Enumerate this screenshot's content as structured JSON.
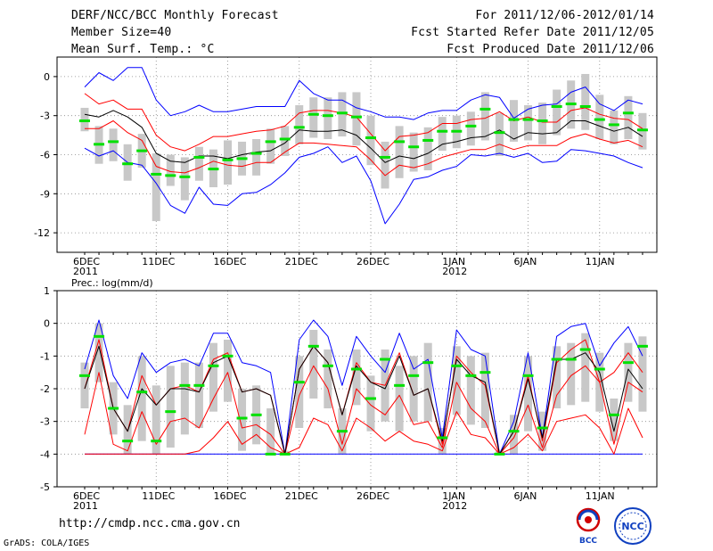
{
  "header": {
    "title": "DERF/NCC/BCC Monthly Forecast",
    "member_size": "Member Size=40",
    "variable": "Mean Surf. Temp.: °C",
    "period": "For 2011/12/06-2012/01/14",
    "started": "Fcst Started Refer Date 2011/12/05",
    "produced": "Fcst Produced Date 2011/12/06"
  },
  "footer": {
    "url": "http://cmdp.ncc.cma.gov.cn",
    "credit": "GrADS: COLA/IGES",
    "logo_left": "BCC",
    "logo_right": "NCC"
  },
  "colors": {
    "envelope": "#0000ff",
    "spread": "#ff0000",
    "mean": "#000000",
    "box": "#c8c8c8",
    "median": "#00e000",
    "grid": "#888888"
  },
  "chart_data": [
    {
      "type": "box-ensemble",
      "title": "Mean Surf. Temp.: °C",
      "ylim": [
        -13.5,
        1.5
      ],
      "yticks": [
        0,
        -3,
        -6,
        -9,
        -12
      ],
      "x_tick_labels": [
        {
          "day": 0,
          "label": "6DEC",
          "sub": "2011"
        },
        {
          "day": 5,
          "label": "11DEC",
          "sub": ""
        },
        {
          "day": 10,
          "label": "16DEC",
          "sub": ""
        },
        {
          "day": 15,
          "label": "21DEC",
          "sub": ""
        },
        {
          "day": 20,
          "label": "26DEC",
          "sub": ""
        },
        {
          "day": 26,
          "label": "1JAN",
          "sub": "2012"
        },
        {
          "day": 31,
          "label": "6JAN",
          "sub": ""
        },
        {
          "day": 36,
          "label": "11JAN",
          "sub": ""
        }
      ],
      "days": 40,
      "series": [
        {
          "name": "max",
          "values": [
            -0.8,
            0.3,
            -0.3,
            0.7,
            0.7,
            -1.8,
            -3.0,
            -2.7,
            -2.2,
            -2.7,
            -2.7,
            -2.5,
            -2.3,
            -2.3,
            -2.3,
            -0.3,
            -1.3,
            -1.8,
            -1.8,
            -2.4,
            -2.7,
            -3.1,
            -3.1,
            -3.3,
            -2.8,
            -2.6,
            -2.6,
            -1.8,
            -1.4,
            -1.6,
            -3.2,
            -2.5,
            -2.2,
            -2.1,
            -1.2,
            -0.8,
            -2.1,
            -2.6,
            -1.8,
            -2.1
          ]
        },
        {
          "name": "upper",
          "values": [
            -1.3,
            -2.1,
            -1.8,
            -2.5,
            -2.5,
            -4.5,
            -5.4,
            -5.7,
            -5.2,
            -4.6,
            -4.6,
            -4.4,
            -4.2,
            -4.1,
            -3.8,
            -2.8,
            -2.6,
            -2.6,
            -2.8,
            -3.1,
            -4.4,
            -5.7,
            -4.6,
            -4.5,
            -4.3,
            -3.6,
            -3.6,
            -3.3,
            -3.2,
            -2.7,
            -3.4,
            -3.1,
            -3.5,
            -3.5,
            -2.6,
            -2.4,
            -2.9,
            -3.2,
            -3.3,
            -4.0
          ]
        },
        {
          "name": "mean",
          "values": [
            -2.9,
            -3.1,
            -2.6,
            -3.1,
            -3.9,
            -5.9,
            -6.5,
            -6.6,
            -6.1,
            -6.1,
            -6.3,
            -6.0,
            -5.8,
            -5.7,
            -5.1,
            -4.1,
            -4.2,
            -4.2,
            -4.1,
            -4.5,
            -5.5,
            -6.6,
            -6.1,
            -6.3,
            -5.9,
            -5.2,
            -5.0,
            -4.7,
            -4.6,
            -4.1,
            -4.8,
            -4.3,
            -4.4,
            -4.3,
            -3.4,
            -3.4,
            -3.8,
            -4.2,
            -3.9,
            -4.6
          ]
        },
        {
          "name": "lower",
          "values": [
            -4.0,
            -4.0,
            -3.4,
            -4.3,
            -4.9,
            -6.9,
            -7.3,
            -7.4,
            -7.0,
            -6.5,
            -6.8,
            -6.9,
            -6.6,
            -6.6,
            -5.8,
            -5.1,
            -5.1,
            -5.2,
            -5.3,
            -5.4,
            -6.4,
            -7.6,
            -6.8,
            -7.0,
            -6.7,
            -6.2,
            -5.9,
            -5.6,
            -5.6,
            -5.2,
            -5.6,
            -5.3,
            -5.3,
            -5.3,
            -4.7,
            -4.4,
            -4.8,
            -5.1,
            -4.9,
            -5.4
          ]
        },
        {
          "name": "min",
          "values": [
            -5.5,
            -6.1,
            -5.7,
            -6.6,
            -6.8,
            -8.2,
            -9.9,
            -10.5,
            -8.5,
            -9.8,
            -9.9,
            -9.0,
            -8.9,
            -8.3,
            -7.4,
            -6.2,
            -5.9,
            -5.4,
            -6.6,
            -6.1,
            -8.0,
            -11.3,
            -9.8,
            -7.9,
            -7.7,
            -7.2,
            -6.9,
            -6.0,
            -6.1,
            -5.9,
            -6.2,
            -5.9,
            -6.6,
            -6.5,
            -5.6,
            -5.7,
            -5.9,
            -6.1,
            -6.6,
            -7.0
          ]
        },
        {
          "name": "median",
          "values": [
            -3.4,
            -5.2,
            -5.0,
            -6.7,
            -5.7,
            -7.5,
            -7.6,
            -7.7,
            -6.2,
            -7.1,
            -6.4,
            -6.3,
            -5.9,
            -5.0,
            -4.8,
            -3.9,
            -2.9,
            -3.0,
            -2.8,
            -3.1,
            -4.7,
            -6.2,
            -5.0,
            -5.4,
            -4.9,
            -4.2,
            -4.2,
            -3.8,
            -2.5,
            -4.3,
            -3.3,
            -3.3,
            -3.4,
            -2.3,
            -2.1,
            -2.3,
            -3.3,
            -3.7,
            -2.8,
            -4.1
          ]
        },
        {
          "name": "box_top",
          "values": [
            -2.4,
            -3.8,
            -4.0,
            -5.2,
            -4.4,
            -5.9,
            -6.0,
            -6.2,
            -5.4,
            -5.6,
            -4.9,
            -5.0,
            -4.8,
            -4.0,
            -3.8,
            -2.2,
            -1.6,
            -1.6,
            -1.2,
            -1.2,
            -3.0,
            -5.0,
            -3.8,
            -4.3,
            -3.9,
            -3.1,
            -3.0,
            -2.7,
            -1.2,
            -2.8,
            -1.8,
            -2.2,
            -2.0,
            -1.0,
            -0.3,
            0.2,
            -1.4,
            -2.6,
            -1.5,
            -2.8
          ]
        },
        {
          "name": "box_bottom",
          "values": [
            -4.2,
            -6.7,
            -6.5,
            -8.0,
            -7.0,
            -11.1,
            -8.4,
            -9.5,
            -8.0,
            -8.5,
            -8.3,
            -7.6,
            -7.6,
            -6.7,
            -6.1,
            -5.2,
            -4.7,
            -4.8,
            -4.6,
            -5.3,
            -6.8,
            -8.6,
            -7.8,
            -7.3,
            -7.2,
            -5.7,
            -5.5,
            -5.3,
            -4.9,
            -6.1,
            -5.0,
            -4.9,
            -5.2,
            -4.5,
            -4.0,
            -4.1,
            -4.8,
            -5.2,
            -4.8,
            -5.6
          ]
        }
      ]
    },
    {
      "type": "box-ensemble",
      "title": "Prec.: log(mm/d)",
      "ylim": [
        -5,
        1
      ],
      "yticks": [
        1,
        0,
        -1,
        -2,
        -3,
        -4,
        -5
      ],
      "days": 40,
      "series": [
        {
          "name": "max",
          "values": [
            -1.4,
            0.1,
            -1.6,
            -2.3,
            -0.9,
            -1.5,
            -1.2,
            -1.1,
            -1.3,
            -0.3,
            -0.3,
            -1.2,
            -1.3,
            -1.5,
            -4.0,
            -0.5,
            0.1,
            -0.4,
            -1.9,
            -0.4,
            -1.0,
            -1.5,
            -0.3,
            -1.4,
            -1.1,
            -3.5,
            -0.2,
            -0.8,
            -1.0,
            -4.0,
            -3.0,
            -0.9,
            -3.5,
            -0.4,
            -0.1,
            0.0,
            -1.3,
            -0.6,
            -0.1,
            -1.0
          ]
        },
        {
          "name": "upper",
          "values": [
            -2.0,
            -0.5,
            -2.6,
            -3.3,
            -1.6,
            -2.5,
            -2.0,
            -1.9,
            -2.1,
            -1.1,
            -0.9,
            -2.1,
            -2.0,
            -2.2,
            -4.0,
            -1.4,
            -0.7,
            -1.2,
            -2.8,
            -1.2,
            -1.8,
            -1.9,
            -0.9,
            -2.2,
            -2.0,
            -3.7,
            -1.0,
            -1.5,
            -1.9,
            -4.0,
            -3.3,
            -1.6,
            -3.6,
            -1.2,
            -0.8,
            -0.5,
            -1.8,
            -1.5,
            -0.9,
            -1.5
          ]
        },
        {
          "name": "mean",
          "values": [
            -2.0,
            -0.7,
            -2.6,
            -3.3,
            -2.0,
            -2.5,
            -2.0,
            -2.0,
            -2.1,
            -1.2,
            -1.0,
            -2.1,
            -2.0,
            -2.2,
            -4.0,
            -1.4,
            -0.7,
            -1.2,
            -2.8,
            -1.3,
            -1.8,
            -2.0,
            -1.0,
            -2.2,
            -2.0,
            -3.6,
            -1.1,
            -1.6,
            -1.8,
            -4.0,
            -3.3,
            -1.7,
            -3.5,
            -1.1,
            -1.1,
            -0.9,
            -1.5,
            -3.3,
            -1.4,
            -2.0
          ]
        },
        {
          "name": "lower",
          "values": [
            -3.4,
            -1.5,
            -3.7,
            -3.9,
            -2.7,
            -3.7,
            -3.0,
            -2.9,
            -3.2,
            -2.3,
            -1.5,
            -3.2,
            -3.1,
            -3.4,
            -4.0,
            -2.2,
            -1.3,
            -2.0,
            -3.7,
            -2.0,
            -2.5,
            -2.8,
            -2.2,
            -3.1,
            -3.0,
            -3.8,
            -1.8,
            -2.6,
            -3.0,
            -4.0,
            -3.5,
            -2.5,
            -3.8,
            -2.2,
            -1.6,
            -1.3,
            -1.8,
            -3.7,
            -1.8,
            -2.1
          ]
        },
        {
          "name": "min",
          "values": [
            -4.0,
            -4.0,
            -4.0,
            -4.0,
            -4.0,
            -4.0,
            -4.0,
            -4.0,
            -4.0,
            -4.0,
            -4.0,
            -4.0,
            -4.0,
            -4.0,
            -4.0,
            -4.0,
            -4.0,
            -4.0,
            -4.0,
            -4.0,
            -4.0,
            -4.0,
            -4.0,
            -4.0,
            -4.0,
            -4.0,
            -4.0,
            -4.0,
            -4.0,
            -4.0,
            -4.0,
            -4.0,
            -4.0,
            -4.0,
            -4.0,
            -4.0,
            -4.0,
            -4.0,
            -4.0,
            -4.0
          ]
        },
        {
          "name": "p10",
          "values": [
            -4.0,
            -4.0,
            -4.0,
            -4.0,
            -4.0,
            -4.0,
            -4.0,
            -4.0,
            -3.9,
            -3.5,
            -3.0,
            -3.7,
            -3.4,
            -3.8,
            -4.0,
            -3.8,
            -2.9,
            -3.1,
            -3.9,
            -2.9,
            -3.2,
            -3.6,
            -3.3,
            -3.6,
            -3.7,
            -3.9,
            -2.7,
            -3.4,
            -3.5,
            -4.0,
            -3.8,
            -3.4,
            -3.9,
            -3.0,
            -2.9,
            -2.8,
            -3.2,
            -4.0,
            -2.6,
            -3.5
          ]
        },
        {
          "name": "median",
          "values": [
            -1.6,
            -0.4,
            -2.6,
            -3.6,
            -2.1,
            -3.6,
            -2.7,
            -1.9,
            -1.9,
            -1.3,
            -1.0,
            -2.9,
            -2.8,
            -4.0,
            -4.0,
            -1.8,
            -0.7,
            -1.3,
            -3.3,
            -1.4,
            -2.3,
            -1.1,
            -1.9,
            -1.6,
            -1.2,
            -3.5,
            -1.3,
            -1.6,
            -1.5,
            -4.0,
            -3.3,
            -1.6,
            -3.2,
            -1.1,
            -1.1,
            -0.8,
            -1.4,
            -2.8,
            -1.2,
            -0.7
          ]
        },
        {
          "name": "box_top",
          "values": [
            -1.2,
            0.0,
            -1.8,
            -2.5,
            -1.0,
            -1.9,
            -1.3,
            -1.2,
            -1.2,
            -0.6,
            -0.5,
            -2.0,
            -1.9,
            -2.6,
            -3.9,
            -1.0,
            -0.2,
            -0.8,
            -2.6,
            -0.8,
            -1.6,
            -0.8,
            -1.3,
            -1.0,
            -0.6,
            -3.2,
            -0.7,
            -1.0,
            -0.9,
            -3.9,
            -2.8,
            -1.0,
            -2.7,
            -0.7,
            -0.6,
            -0.3,
            -0.9,
            -2.3,
            -0.6,
            -0.4
          ]
        },
        {
          "name": "box_bottom",
          "values": [
            -2.6,
            -1.8,
            -3.4,
            -4.0,
            -3.6,
            -4.0,
            -3.8,
            -3.4,
            -3.2,
            -2.7,
            -2.4,
            -3.9,
            -3.7,
            -4.0,
            -4.0,
            -3.2,
            -2.3,
            -2.6,
            -4.0,
            -2.5,
            -3.3,
            -3.0,
            -3.3,
            -3.0,
            -3.0,
            -4.0,
            -2.8,
            -3.1,
            -3.2,
            -4.0,
            -4.0,
            -3.3,
            -3.9,
            -2.6,
            -2.5,
            -2.4,
            -2.7,
            -3.6,
            -2.4,
            -2.7
          ]
        }
      ]
    }
  ]
}
